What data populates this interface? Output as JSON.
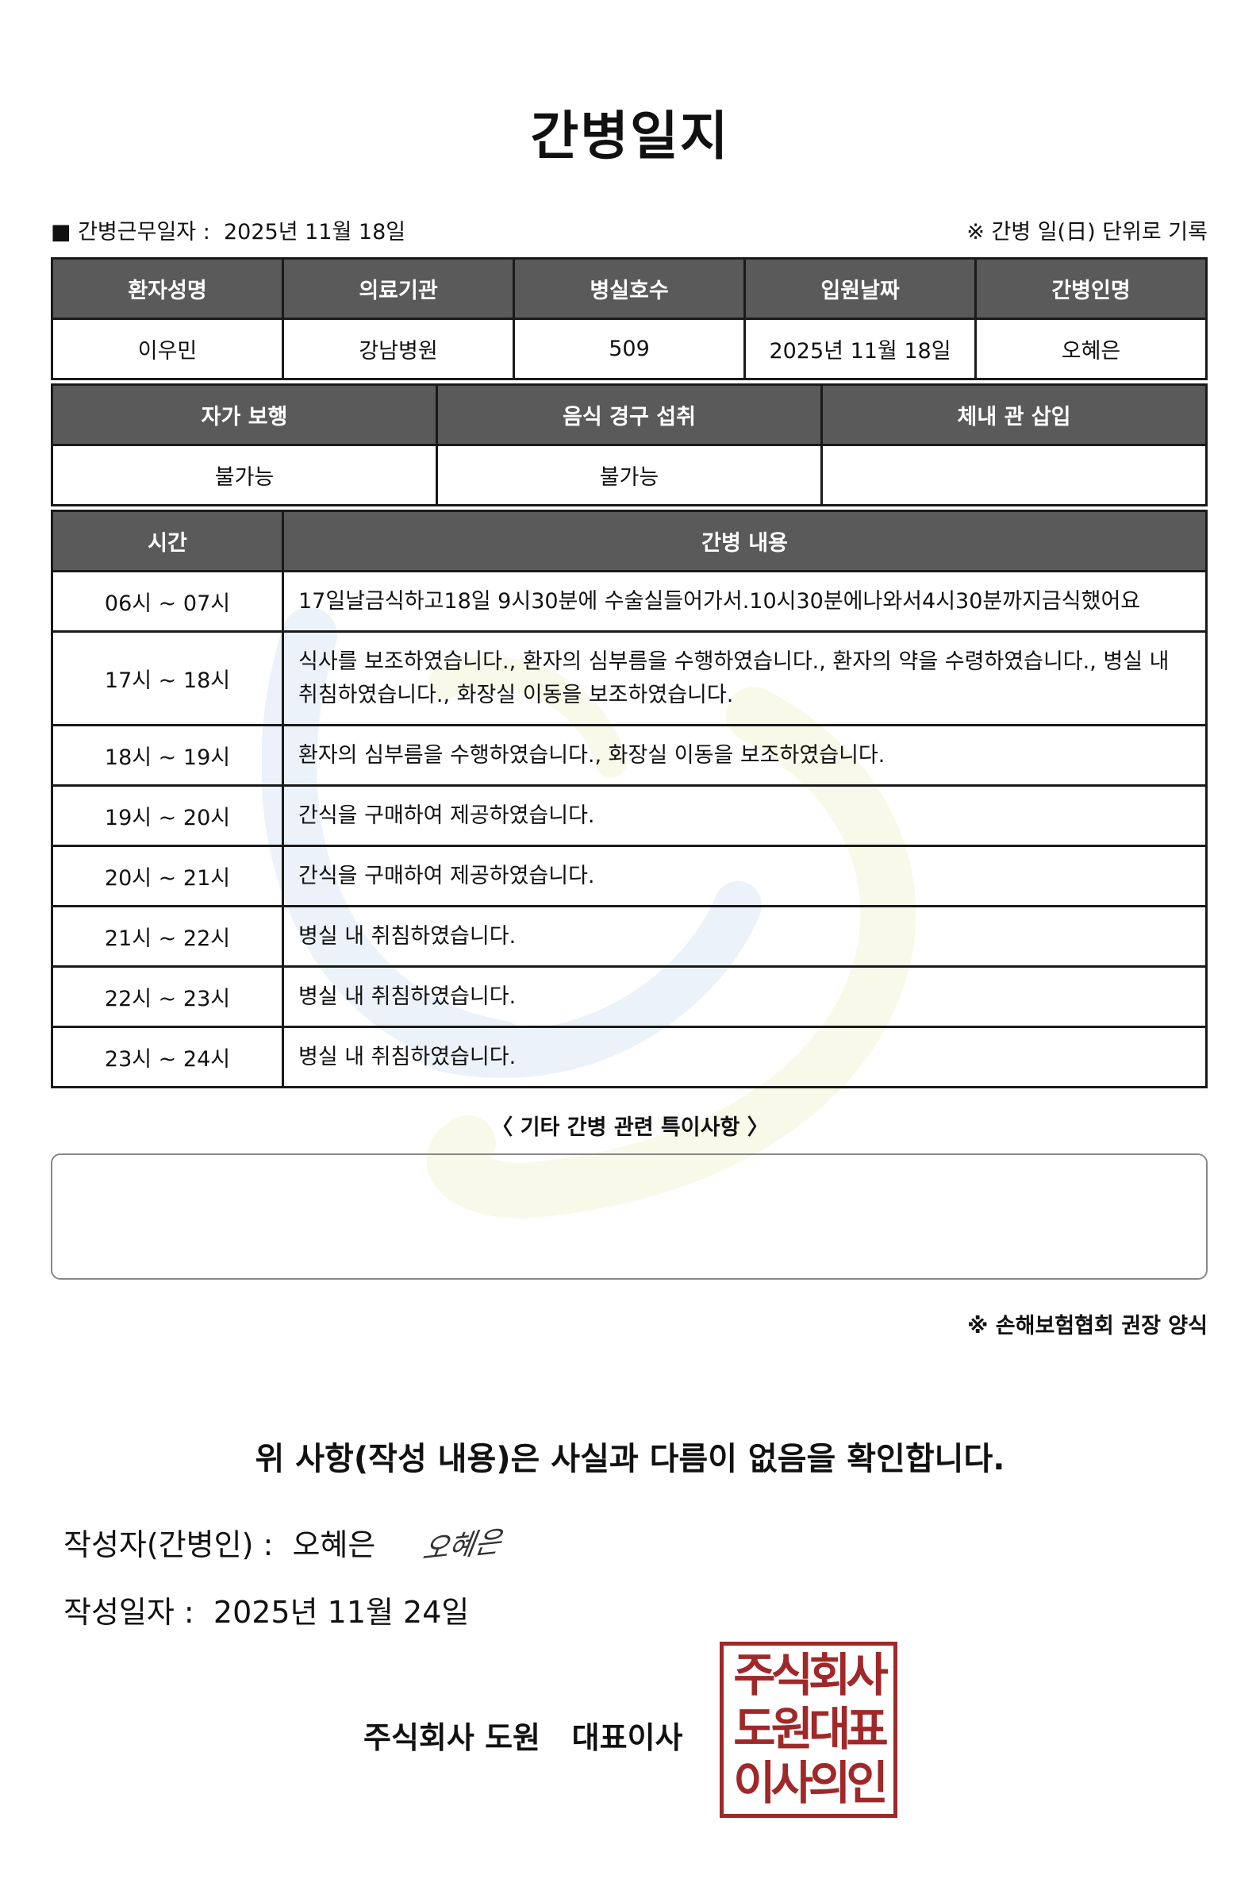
{
  "title": "간병일지",
  "meta": {
    "work_date_label": "■ 간병근무일자 :",
    "work_date": "2025년 11월 18일",
    "unit_note": "※ 간병 일(日) 단위로 기록"
  },
  "info_table": {
    "headers": [
      "환자성명",
      "의료기관",
      "병실호수",
      "입원날짜",
      "간병인명"
    ],
    "values": [
      "이우민",
      "강남병원",
      "509",
      "2025년 11월 18일",
      "오혜은"
    ]
  },
  "status_table": {
    "headers": [
      "자가 보행",
      "음식 경구 섭취",
      "체내 관 삽입"
    ],
    "values": [
      "불가능",
      "불가능",
      ""
    ]
  },
  "log_table": {
    "headers": [
      "시간",
      "간병 내용"
    ],
    "rows": [
      {
        "time": "06시 ~ 07시",
        "content": "17일날금식하고18일 9시30분에 수술실들어가서.10시30분에나와서4시30분까지금식했어요"
      },
      {
        "time": "17시 ~ 18시",
        "content": "식사를 보조하였습니다., 환자의 심부름을 수행하였습니다., 환자의 약을 수령하였습니다., 병실 내 취침하였습니다., 화장실 이동을 보조하였습니다."
      },
      {
        "time": "18시 ~ 19시",
        "content": "환자의 심부름을 수행하였습니다., 화장실 이동을 보조하였습니다."
      },
      {
        "time": "19시 ~ 20시",
        "content": "간식을 구매하여 제공하였습니다."
      },
      {
        "time": "20시 ~ 21시",
        "content": "간식을 구매하여 제공하였습니다."
      },
      {
        "time": "21시 ~ 22시",
        "content": "병실 내 취침하였습니다."
      },
      {
        "time": "22시 ~ 23시",
        "content": "병실 내 취침하였습니다."
      },
      {
        "time": "23시 ~ 24시",
        "content": "병실 내 취침하였습니다."
      }
    ]
  },
  "special": {
    "title": "〈 기타 간병 관련 특이사항 〉",
    "content": ""
  },
  "form_note": "※ 손해보험협회 권장 양식",
  "confirm": "위 사항(작성 내용)은 사실과 다름이 없음을 확인합니다.",
  "writer": {
    "label": "작성자(간병인) :",
    "name": "오혜은",
    "signature": "오혜은"
  },
  "written_date": {
    "label": "작성일자 :",
    "value": "2025년 11월 24일"
  },
  "company": "주식회사 도원   대표이사",
  "stamp": {
    "lines": [
      "주식회사",
      "도원대표",
      "이사의인"
    ],
    "color": "#a02828"
  },
  "colors": {
    "header_bg": "#5a5a5a"
  }
}
